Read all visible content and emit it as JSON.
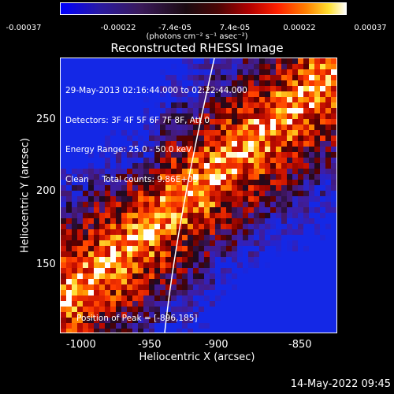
{
  "colorbar": {
    "ticks": [
      "-0.00037",
      "-0.00022",
      "-7.4e-05",
      "7.4e-05",
      "0.00022",
      "0.00037"
    ],
    "unit": "(photons cm⁻² s⁻¹ asec⁻²)"
  },
  "title": "Reconstructed RHESSI Image",
  "info": {
    "line1": "29-May-2013 02:16:44.000 to 02:22:44.000",
    "line2": "Detectors: 3F 4F 5F 6F 7F 8F, Att 0",
    "line3": "Energy Range: 25.0 - 50.0 keV",
    "line4": "Clean     Total counts: 9.86E+03"
  },
  "peak_label": "Position of Peak = [-896,185]",
  "axes": {
    "ylabel": "Heliocentric Y (arcsec)",
    "xlabel": "Heliocentric X (arcsec)",
    "yticks": [
      "250",
      "200",
      "150"
    ],
    "xticks": [
      "-1000",
      "-950",
      "-900",
      "-850"
    ]
  },
  "timestamp": "14-May-2022 09:45"
}
